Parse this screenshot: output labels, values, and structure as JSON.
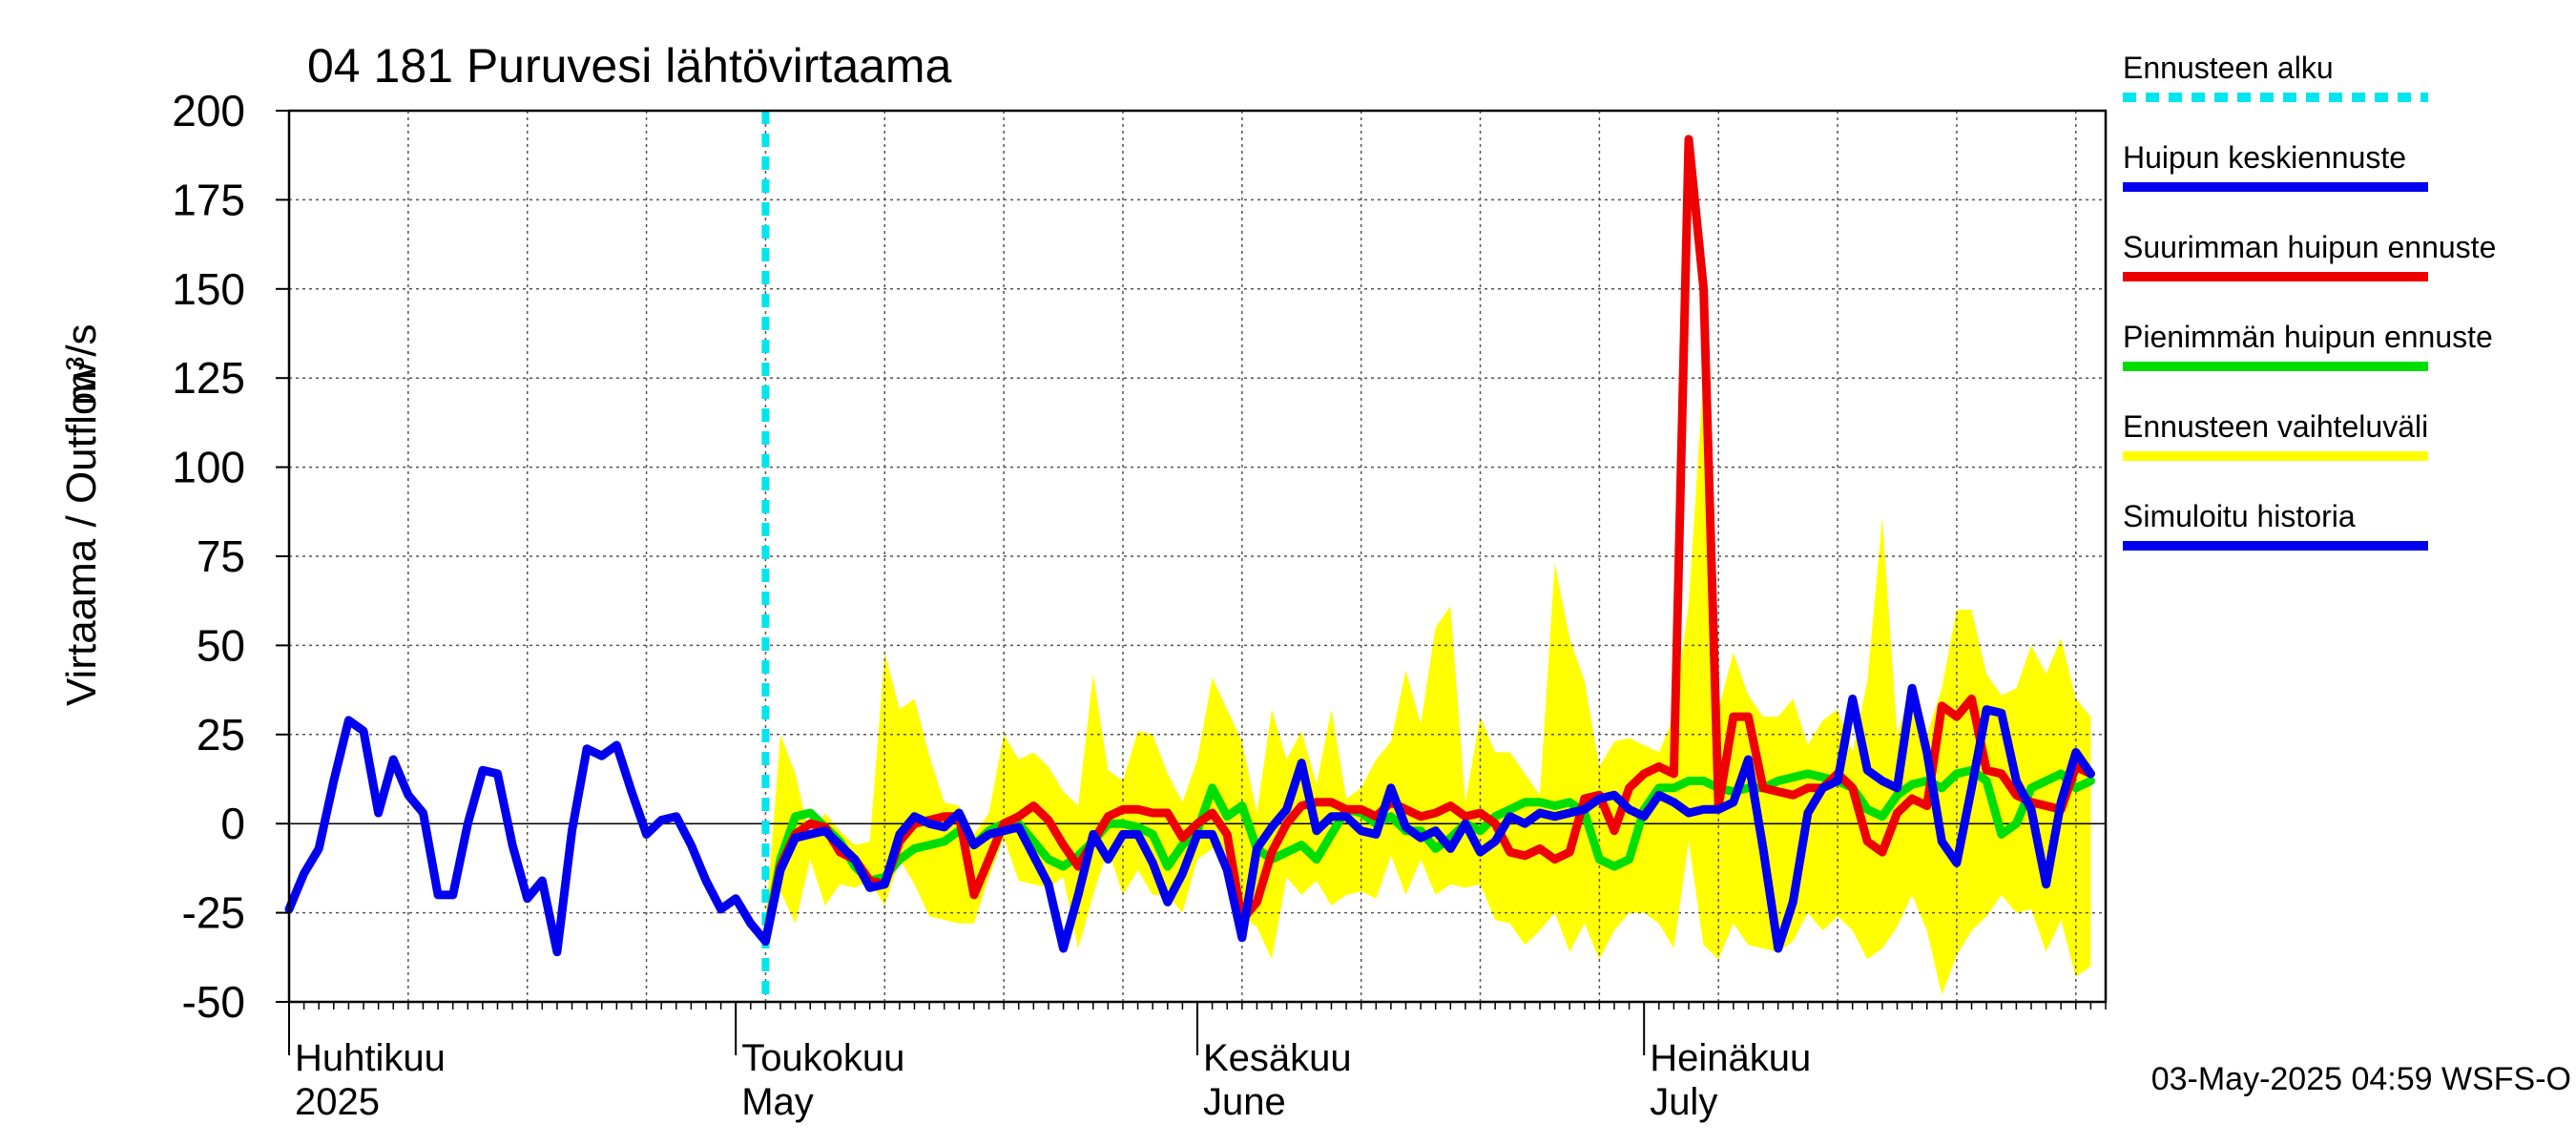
{
  "chart_data": {
    "type": "line",
    "title": "04 181 Puruvesi lähtövirtaama",
    "ylabel_fi": "Virtaama / Outflow",
    "ylabel_unit": "m³/s",
    "ylim": [
      -50,
      200
    ],
    "yticks": [
      200,
      175,
      150,
      125,
      100,
      75,
      50,
      25,
      0,
      -25,
      -50
    ],
    "x_start": "2025-04-01",
    "x_end": "2025-07-31",
    "month_labels": [
      {
        "date": "2025-04-01",
        "fi": "Huhtikuu",
        "en": "2025"
      },
      {
        "date": "2025-05-01",
        "fi": "Toukokuu",
        "en": "May"
      },
      {
        "date": "2025-06-01",
        "fi": "Kesäkuu",
        "en": "June"
      },
      {
        "date": "2025-07-01",
        "fi": "Heinäkuu",
        "en": "July"
      }
    ],
    "forecast_start": "2025-05-03",
    "legend": [
      {
        "label": "Ennusteen alku",
        "color": "#00e5ee",
        "style": "dashed"
      },
      {
        "label": "Huipun keskiennuste",
        "color": "#0000ee",
        "style": "solid"
      },
      {
        "label": "Suurimman huipun ennuste",
        "color": "#ee0000",
        "style": "solid"
      },
      {
        "label": "Pienimmän huipun ennuste",
        "color": "#00dd00",
        "style": "solid"
      },
      {
        "label": "Ennusteen vaihteluväli",
        "color": "#ffff00",
        "style": "solid"
      },
      {
        "label": "Simuloitu historia",
        "color": "#0000ee",
        "style": "solid"
      }
    ],
    "footer": "03-May-2025 04:59 WSFS-O",
    "series": [
      {
        "name": "Simuloitu historia",
        "color": "#0000ee",
        "x_day": [
          0,
          1,
          2,
          3,
          4,
          5,
          6,
          7,
          8,
          9,
          10,
          11,
          12,
          13,
          14,
          15,
          16,
          17,
          18,
          19,
          20,
          21,
          22,
          23,
          24,
          25,
          26,
          27,
          28,
          29,
          30,
          31,
          32
        ],
        "values": [
          -24,
          -14,
          -7,
          12,
          29,
          26,
          3,
          18,
          8,
          3,
          -20,
          -20,
          0,
          15,
          14,
          -6,
          -21,
          -16,
          -36,
          -2,
          21,
          19,
          22,
          9,
          -3,
          1,
          2,
          -6,
          -16,
          -24,
          -21,
          -28,
          -33
        ]
      },
      {
        "name": "Huipun keskiennuste",
        "color": "#0000ee",
        "x_day": [
          32,
          33,
          34,
          35,
          36,
          37,
          38,
          39,
          40,
          41,
          42,
          43,
          44,
          45,
          46,
          47,
          48,
          49,
          50,
          51,
          52,
          53,
          54,
          55,
          56,
          57,
          58,
          59,
          60,
          61,
          62,
          63,
          64,
          65,
          66,
          67,
          68,
          69,
          70,
          71,
          72,
          73,
          74,
          75,
          76,
          77,
          78,
          79,
          80,
          81,
          82,
          83,
          84,
          85,
          86,
          87,
          88,
          89,
          90,
          91,
          92,
          93,
          94,
          95,
          96,
          97,
          98,
          99,
          100,
          101,
          102,
          103,
          104,
          105,
          106,
          107,
          108,
          109,
          110,
          111,
          112,
          113,
          114,
          115,
          116,
          117,
          118,
          119,
          120,
          121
        ],
        "values": [
          -33,
          -13,
          -4,
          -3,
          -2,
          -6,
          -10,
          -18,
          -17,
          -3,
          2,
          0,
          -1,
          3,
          -6,
          -3,
          -2,
          -1,
          -9,
          -17,
          -35,
          -20,
          -3,
          -10,
          -3,
          -3,
          -11,
          -22,
          -14,
          -3,
          -3,
          -13,
          -32,
          -7,
          -1,
          4,
          17,
          -2,
          2,
          2,
          -2,
          -3,
          10,
          -1,
          -4,
          -2,
          -7,
          0,
          -8,
          -5,
          2,
          0,
          3,
          2,
          3,
          4,
          7,
          8,
          4,
          2,
          8,
          6,
          3,
          4,
          4,
          6,
          18,
          -7,
          -35,
          -22,
          3,
          10,
          12,
          35,
          15,
          12,
          10,
          38,
          20,
          -5,
          -11,
          10,
          32,
          31,
          12,
          4,
          -17,
          6,
          20,
          14
        ]
      },
      {
        "name": "Suurimman huipun ennuste",
        "color": "#ee0000",
        "x_day": [
          32,
          33,
          34,
          35,
          36,
          37,
          38,
          39,
          40,
          41,
          42,
          43,
          44,
          45,
          46,
          47,
          48,
          49,
          50,
          51,
          52,
          53,
          54,
          55,
          56,
          57,
          58,
          59,
          60,
          61,
          62,
          63,
          64,
          65,
          66,
          67,
          68,
          69,
          70,
          71,
          72,
          73,
          74,
          75,
          76,
          77,
          78,
          79,
          80,
          81,
          82,
          83,
          84,
          85,
          86,
          87,
          88,
          89,
          90,
          91,
          92,
          93,
          94,
          95,
          96,
          97,
          98,
          99,
          100,
          101,
          102,
          103,
          104,
          105,
          106,
          107,
          108,
          109,
          110,
          111,
          112,
          113,
          114,
          115,
          116,
          117,
          118,
          119,
          120,
          121
        ],
        "values": [
          -33,
          -12,
          -3,
          0,
          -1,
          -8,
          -10,
          -16,
          -17,
          -5,
          0,
          1,
          2,
          2,
          -20,
          -10,
          0,
          2,
          5,
          1,
          -6,
          -12,
          -5,
          2,
          4,
          4,
          3,
          3,
          -4,
          0,
          3,
          -3,
          -27,
          -22,
          -8,
          0,
          5,
          6,
          6,
          4,
          4,
          2,
          6,
          4,
          2,
          3,
          5,
          2,
          3,
          0,
          -8,
          -9,
          -7,
          -10,
          -8,
          7,
          8,
          -2,
          10,
          14,
          16,
          14,
          192,
          150,
          5,
          30,
          30,
          10,
          9,
          8,
          10,
          10,
          14,
          10,
          -5,
          -8,
          3,
          7,
          5,
          33,
          30,
          35,
          15,
          14,
          8,
          6,
          5,
          4,
          16,
          14
        ]
      },
      {
        "name": "Pienimmän huipun ennuste",
        "color": "#00dd00",
        "x_day": [
          32,
          33,
          34,
          35,
          36,
          37,
          38,
          39,
          40,
          41,
          42,
          43,
          44,
          45,
          46,
          47,
          48,
          49,
          50,
          51,
          52,
          53,
          54,
          55,
          56,
          57,
          58,
          59,
          60,
          61,
          62,
          63,
          64,
          65,
          66,
          67,
          68,
          69,
          70,
          71,
          72,
          73,
          74,
          75,
          76,
          77,
          78,
          79,
          80,
          81,
          82,
          83,
          84,
          85,
          86,
          87,
          88,
          89,
          90,
          91,
          92,
          93,
          94,
          95,
          96,
          97,
          98,
          99,
          100,
          101,
          102,
          103,
          104,
          105,
          106,
          107,
          108,
          109,
          110,
          111,
          112,
          113,
          114,
          115,
          116,
          117,
          118,
          119,
          120,
          121
        ],
        "values": [
          -33,
          -10,
          2,
          3,
          -1,
          -5,
          -12,
          -16,
          -15,
          -10,
          -7,
          -6,
          -5,
          -2,
          -6,
          -2,
          0,
          0,
          -5,
          -10,
          -12,
          -9,
          -5,
          0,
          0,
          -1,
          -3,
          -12,
          -6,
          -2,
          10,
          2,
          5,
          -7,
          -10,
          -8,
          -6,
          -10,
          -3,
          4,
          3,
          0,
          2,
          -2,
          -2,
          -7,
          -4,
          0,
          -2,
          2,
          4,
          6,
          6,
          5,
          6,
          3,
          -10,
          -12,
          -10,
          4,
          10,
          10,
          12,
          12,
          10,
          9,
          10,
          10,
          12,
          13,
          14,
          13,
          12,
          10,
          4,
          2,
          8,
          11,
          12,
          10,
          14,
          15,
          12,
          -3,
          0,
          10,
          12,
          14,
          10,
          12
        ]
      },
      {
        "name": "Ennusteen vaihteluväli",
        "color": "#ffff00",
        "x_day": [
          32,
          33,
          34,
          35,
          36,
          37,
          38,
          39,
          40,
          41,
          42,
          43,
          44,
          45,
          46,
          47,
          48,
          49,
          50,
          51,
          52,
          53,
          54,
          55,
          56,
          57,
          58,
          59,
          60,
          61,
          62,
          63,
          64,
          65,
          66,
          67,
          68,
          69,
          70,
          71,
          72,
          73,
          74,
          75,
          76,
          77,
          78,
          79,
          80,
          81,
          82,
          83,
          84,
          85,
          86,
          87,
          88,
          89,
          90,
          91,
          92,
          93,
          94,
          95,
          96,
          97,
          98,
          99,
          100,
          101,
          102,
          103,
          104,
          105,
          106,
          107,
          108,
          109,
          110,
          111,
          112,
          113,
          114,
          115,
          116,
          117,
          118,
          119,
          120,
          121
        ],
        "upper": [
          -28,
          25,
          14,
          -4,
          3,
          -2,
          -6,
          -5,
          48,
          32,
          35,
          19,
          6,
          5,
          -3,
          3,
          25,
          18,
          20,
          16,
          9,
          5,
          42,
          15,
          12,
          26,
          25,
          14,
          6,
          18,
          41,
          32,
          23,
          3,
          32,
          18,
          26,
          11,
          32,
          7,
          10,
          18,
          23,
          43,
          28,
          55,
          61,
          6,
          30,
          20,
          20,
          14,
          8,
          73,
          52,
          40,
          16,
          23,
          24,
          22,
          20,
          30,
          62,
          126,
          32,
          48,
          36,
          30,
          30,
          35,
          22,
          29,
          32,
          20,
          40,
          86,
          25,
          38,
          25,
          38,
          60,
          60,
          42,
          36,
          38,
          50,
          42,
          52,
          35,
          30
        ],
        "lower": [
          -33,
          -19,
          -28,
          -10,
          -23,
          -17,
          -18,
          -16,
          -23,
          -10,
          -17,
          -26,
          -27,
          -28,
          -28,
          -15,
          -4,
          -16,
          -17,
          -18,
          -15,
          -35,
          -20,
          -7,
          -20,
          -13,
          -20,
          -20,
          -25,
          -10,
          -7,
          -8,
          -26,
          -29,
          -38,
          -15,
          -20,
          -16,
          -23,
          -20,
          -19,
          -21,
          -9,
          -20,
          -10,
          -20,
          -17,
          -18,
          -17,
          -27,
          -28,
          -34,
          -30,
          -25,
          -36,
          -28,
          -38,
          -30,
          -25,
          -25,
          -28,
          -35,
          -5,
          -34,
          -38,
          -28,
          -34,
          -35,
          -36,
          -33,
          -25,
          -30,
          -26,
          -30,
          -38,
          -35,
          -29,
          -20,
          -30,
          -48,
          -37,
          -30,
          -26,
          -20,
          -25,
          -24,
          -36,
          -27,
          -43,
          -40
        ]
      }
    ]
  }
}
